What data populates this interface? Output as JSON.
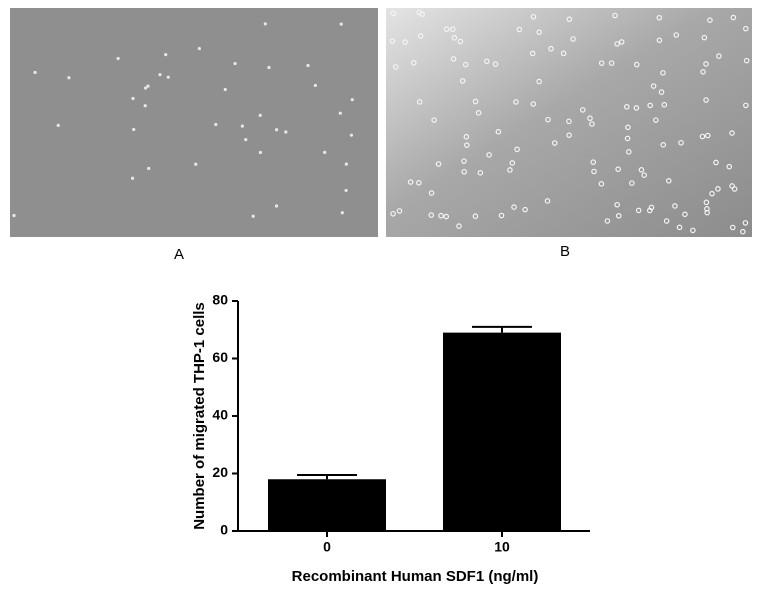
{
  "panels": [
    {
      "label": "A"
    },
    {
      "label": "B"
    }
  ],
  "chart_data": {
    "type": "bar",
    "categories": [
      "0",
      "10"
    ],
    "values": [
      18,
      69
    ],
    "errors": [
      1.5,
      2
    ],
    "color": "#000000",
    "xlabel": "Recombinant Human SDF1 (ng/ml)",
    "ylabel": "Number of migrated THP-1 cells",
    "ylim": [
      0,
      80
    ],
    "yticks": [
      0,
      20,
      40,
      60,
      80
    ]
  }
}
